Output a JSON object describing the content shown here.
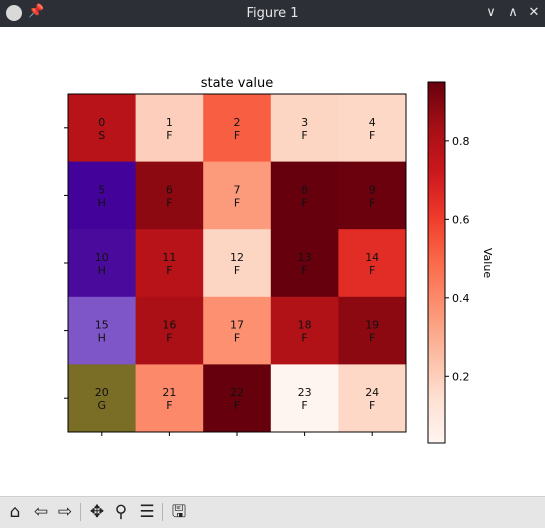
{
  "window": {
    "title": "Figure 1",
    "controls": [
      {
        "name": "minimize-button",
        "icon": "chevron-down-icon",
        "glyph": "∨"
      },
      {
        "name": "maximize-button",
        "icon": "chevron-up-icon",
        "glyph": "∧"
      },
      {
        "name": "close-button",
        "icon": "close-icon",
        "glyph": "✕"
      }
    ]
  },
  "toolbar": {
    "tools": [
      {
        "name": "home-button",
        "icon": "home-icon",
        "glyph": "⌂"
      },
      {
        "name": "back-button",
        "icon": "back-arrow-icon",
        "glyph": "⇦"
      },
      {
        "name": "forward-button",
        "icon": "forward-arrow-icon",
        "glyph": "⇨"
      },
      {
        "name": "pan-button",
        "icon": "move-icon",
        "glyph": "✥"
      },
      {
        "name": "zoom-button",
        "icon": "magnifier-icon",
        "glyph": "⚲"
      },
      {
        "name": "configure-subplots-button",
        "icon": "sliders-icon",
        "glyph": "☰"
      },
      {
        "name": "save-button",
        "icon": "floppy-disk-icon",
        "glyph": "🖫"
      }
    ]
  },
  "chart_data": {
    "type": "heatmap",
    "title": "state value",
    "xlabel": "",
    "ylabel": "",
    "rows": 5,
    "cols": 5,
    "cells": [
      {
        "state": "0",
        "label": "S",
        "value": 0.78
      },
      {
        "state": "1",
        "label": "F",
        "value": 0.2
      },
      {
        "state": "2",
        "label": "F",
        "value": 0.52
      },
      {
        "state": "3",
        "label": "F",
        "value": 0.18
      },
      {
        "state": "4",
        "label": "F",
        "value": 0.17
      },
      {
        "state": "5",
        "label": "H",
        "value": null
      },
      {
        "state": "6",
        "label": "F",
        "value": 0.88
      },
      {
        "state": "7",
        "label": "F",
        "value": 0.35
      },
      {
        "state": "8",
        "label": "F",
        "value": 0.95
      },
      {
        "state": "9",
        "label": "F",
        "value": 0.94
      },
      {
        "state": "10",
        "label": "H",
        "value": null
      },
      {
        "state": "11",
        "label": "F",
        "value": 0.78
      },
      {
        "state": "12",
        "label": "F",
        "value": 0.18
      },
      {
        "state": "13",
        "label": "F",
        "value": 0.95
      },
      {
        "state": "14",
        "label": "F",
        "value": 0.65
      },
      {
        "state": "15",
        "label": "H",
        "value": null
      },
      {
        "state": "16",
        "label": "F",
        "value": 0.82
      },
      {
        "state": "17",
        "label": "F",
        "value": 0.38
      },
      {
        "state": "18",
        "label": "F",
        "value": 0.8
      },
      {
        "state": "19",
        "label": "F",
        "value": 0.88
      },
      {
        "state": "20",
        "label": "G",
        "value": null
      },
      {
        "state": "21",
        "label": "F",
        "value": 0.4
      },
      {
        "state": "22",
        "label": "F",
        "value": 0.95
      },
      {
        "state": "23",
        "label": "F",
        "value": 0.03
      },
      {
        "state": "24",
        "label": "F",
        "value": 0.17
      }
    ],
    "special_colors": {
      "H_row1": "#43029a",
      "H_row2": "#4a0b9d",
      "H_row3": "#7f56c8",
      "G": "#7a6d26"
    },
    "colormap": "Reds",
    "colorbar": {
      "label": "Value",
      "ticks": [
        "0.2",
        "0.4",
        "0.6",
        "0.8"
      ],
      "tick_values": [
        0.2,
        0.4,
        0.6,
        0.8
      ],
      "range": [
        0.03,
        0.95
      ]
    },
    "grid": false,
    "axis_ticks_labeled": false
  }
}
